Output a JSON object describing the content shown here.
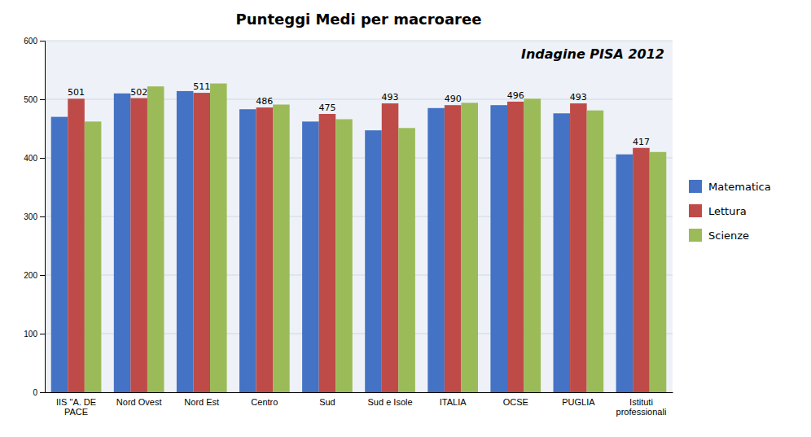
{
  "chart_data": {
    "type": "bar",
    "title": "Punteggi Medi per macroaree",
    "subtitle": "Indagine PISA 2012",
    "categories": [
      "IIS \"A. DE\nPACE",
      "Nord Ovest",
      "Nord Est",
      "Centro",
      "Sud",
      "Sud e Isole",
      "ITALIA",
      "OCSE",
      "PUGLIA",
      "Istituti\nprofessionali"
    ],
    "series": [
      {
        "name": "Matematica",
        "color": "#4472C4",
        "values": [
          470,
          510,
          514,
          483,
          462,
          447,
          485,
          490,
          476,
          406
        ]
      },
      {
        "name": "Lettura",
        "color": "#BE4B48",
        "values": [
          501,
          502,
          511,
          486,
          475,
          493,
          490,
          496,
          493,
          417
        ],
        "data_labels": true
      },
      {
        "name": "Scienze",
        "color": "#9BBB59",
        "values": [
          462,
          522,
          527,
          491,
          466,
          451,
          494,
          501,
          481,
          410
        ]
      }
    ],
    "ylim": [
      0,
      600
    ],
    "yticks": [
      0,
      100,
      200,
      300,
      400,
      500,
      600
    ],
    "grid": true,
    "legend": "right"
  }
}
